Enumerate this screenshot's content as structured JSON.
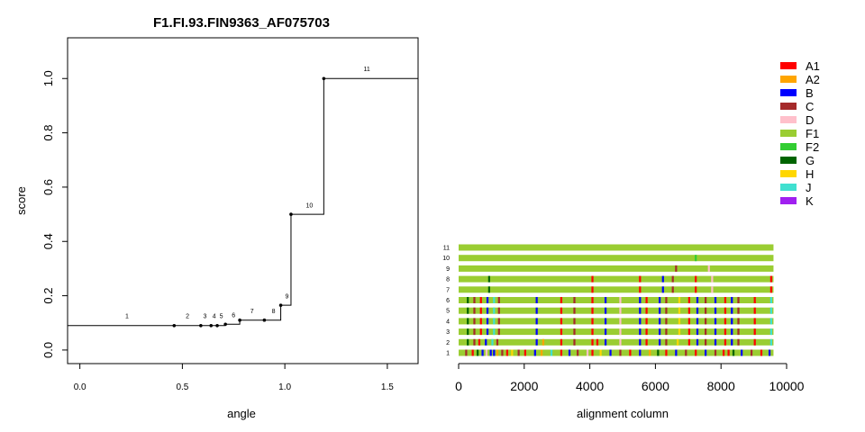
{
  "chart_data": [
    {
      "type": "line",
      "title": "F1.FI.93.FIN9363_AF075703",
      "xlabel": "angle",
      "ylabel": "score",
      "xlim": [
        -0.06,
        1.65
      ],
      "ylim": [
        -0.05,
        1.15
      ],
      "xticks": [
        0.0,
        0.5,
        1.0,
        1.5
      ],
      "xtick_labels": [
        "0.0",
        "0.5",
        "1.0",
        "1.5"
      ],
      "yticks": [
        0.0,
        0.2,
        0.4,
        0.6,
        0.8,
        1.0
      ],
      "ytick_labels": [
        "0.0",
        "0.2",
        "0.4",
        "0.6",
        "0.8",
        "1.0"
      ],
      "step": {
        "x": [
          -0.06,
          0.46,
          0.59,
          0.64,
          0.67,
          0.71,
          0.78,
          0.9,
          0.98,
          1.03,
          1.19,
          1.65
        ],
        "y": [
          0.09,
          0.09,
          0.09,
          0.09,
          0.09,
          0.095,
          0.11,
          0.11,
          0.165,
          0.5,
          1.0,
          1.0
        ]
      },
      "points": [
        {
          "label": "1",
          "x": 0.46,
          "y": 0.09,
          "label_x": 0.23,
          "label_y": 0.117
        },
        {
          "label": "2",
          "x": 0.59,
          "y": 0.09,
          "label_x": 0.525,
          "label_y": 0.117
        },
        {
          "label": "3",
          "x": 0.64,
          "y": 0.09,
          "label_x": 0.61,
          "label_y": 0.117
        },
        {
          "label": "4",
          "x": 0.67,
          "y": 0.09,
          "label_x": 0.655,
          "label_y": 0.117
        },
        {
          "label": "5",
          "x": 0.71,
          "y": 0.095,
          "label_x": 0.69,
          "label_y": 0.117
        },
        {
          "label": "6",
          "x": 0.78,
          "y": 0.11,
          "label_x": 0.75,
          "label_y": 0.12
        },
        {
          "label": "7",
          "x": 0.9,
          "y": 0.11,
          "label_x": 0.84,
          "label_y": 0.135
        },
        {
          "label": "8",
          "x": 0.98,
          "y": 0.165,
          "label_x": 0.945,
          "label_y": 0.135
        },
        {
          "label": "9",
          "x": 1.03,
          "y": 0.5,
          "label_x": 1.01,
          "label_y": 0.19
        },
        {
          "label": "10",
          "x": 1.19,
          "y": 1.0,
          "label_x": 1.12,
          "label_y": 0.525
        },
        {
          "label": "11",
          "x": 1.65,
          "y": 1.0,
          "label_x": 1.4,
          "label_y": 1.027
        }
      ]
    },
    {
      "type": "heatmap",
      "xlabel": "alignment column",
      "xlim": [
        0,
        10000
      ],
      "xticks": [
        0,
        2000,
        4000,
        6000,
        8000,
        10000
      ],
      "xtick_labels": [
        "0",
        "2000",
        "4000",
        "6000",
        "8000",
        "10000"
      ],
      "xmax": 9600,
      "row_labels": [
        "1",
        "2",
        "3",
        "4",
        "5",
        "6",
        "7",
        "8",
        "9",
        "10",
        "11"
      ],
      "base_color": "#9ACD32",
      "legend": [
        {
          "name": "A1",
          "color": "#FF0000"
        },
        {
          "name": "A2",
          "color": "#FFA500"
        },
        {
          "name": "B",
          "color": "#0000FF"
        },
        {
          "name": "C",
          "color": "#A52A2A"
        },
        {
          "name": "D",
          "color": "#FFC0CB"
        },
        {
          "name": "F1",
          "color": "#9ACD32"
        },
        {
          "name": "F2",
          "color": "#32CD32"
        },
        {
          "name": "G",
          "color": "#006400"
        },
        {
          "name": "H",
          "color": "#FFD700"
        },
        {
          "name": "J",
          "color": "#40E0D0"
        },
        {
          "name": "K",
          "color": "#A020F0"
        }
      ],
      "rows": [
        {
          "label": "1",
          "marks": [
            [
              200,
              "#A52A2A"
            ],
            [
              400,
              "#FF0000"
            ],
            [
              550,
              "#006400"
            ],
            [
              700,
              "#0000FF"
            ],
            [
              820,
              "#FFC0CB"
            ],
            [
              950,
              "#0000FF"
            ],
            [
              1050,
              "#0000FF"
            ],
            [
              1150,
              "#FFA500"
            ],
            [
              1300,
              "#A52A2A"
            ],
            [
              1450,
              "#FF0000"
            ],
            [
              1600,
              "#FFD700"
            ],
            [
              1800,
              "#A52A2A"
            ],
            [
              2000,
              "#FF0000"
            ],
            [
              2300,
              "#0000FF"
            ],
            [
              2500,
              "#FFA500"
            ],
            [
              2800,
              "#40E0D0"
            ],
            [
              3100,
              "#FF0000"
            ],
            [
              3350,
              "#0000FF"
            ],
            [
              3600,
              "#A52A2A"
            ],
            [
              3900,
              "#FFC0CB"
            ],
            [
              4050,
              "#FF0000"
            ],
            [
              4300,
              "#FFD700"
            ],
            [
              4600,
              "#0000FF"
            ],
            [
              4900,
              "#A52A2A"
            ],
            [
              5200,
              "#FF0000"
            ],
            [
              5500,
              "#0000FF"
            ],
            [
              5800,
              "#FFA500"
            ],
            [
              6050,
              "#006400"
            ],
            [
              6300,
              "#FF0000"
            ],
            [
              6600,
              "#0000FF"
            ],
            [
              6900,
              "#A52A2A"
            ],
            [
              7200,
              "#FF0000"
            ],
            [
              7500,
              "#0000FF"
            ],
            [
              7800,
              "#A52A2A"
            ],
            [
              8050,
              "#FF0000"
            ],
            [
              8200,
              "#FF0000"
            ],
            [
              8350,
              "#006400"
            ],
            [
              8600,
              "#0000FF"
            ],
            [
              8900,
              "#A52A2A"
            ],
            [
              9200,
              "#FF0000"
            ],
            [
              9450,
              "#0000FF"
            ]
          ]
        },
        {
          "label": "2",
          "marks": [
            [
              250,
              "#006400"
            ],
            [
              450,
              "#A52A2A"
            ],
            [
              600,
              "#FF0000"
            ],
            [
              800,
              "#0000FF"
            ],
            [
              1000,
              "#40E0D0"
            ],
            [
              1150,
              "#A52A2A"
            ],
            [
              2350,
              "#0000FF"
            ],
            [
              2550,
              "#FFA500"
            ],
            [
              3100,
              "#FF0000"
            ],
            [
              3500,
              "#A52A2A"
            ],
            [
              4050,
              "#FF0000"
            ],
            [
              4200,
              "#FF0000"
            ],
            [
              4450,
              "#0000FF"
            ],
            [
              4900,
              "#FFC0CB"
            ],
            [
              5500,
              "#0000FF"
            ],
            [
              5700,
              "#FF0000"
            ],
            [
              6100,
              "#0000FF"
            ],
            [
              6300,
              "#A52A2A"
            ],
            [
              6650,
              "#FFD700"
            ],
            [
              7000,
              "#FF0000"
            ],
            [
              7250,
              "#0000FF"
            ],
            [
              7500,
              "#A52A2A"
            ],
            [
              7800,
              "#0000FF"
            ],
            [
              8100,
              "#FF0000"
            ],
            [
              8300,
              "#0000FF"
            ],
            [
              8500,
              "#A52A2A"
            ],
            [
              9000,
              "#FF0000"
            ],
            [
              9500,
              "#40E0D0"
            ]
          ]
        },
        {
          "label": "3",
          "marks": [
            [
              250,
              "#006400"
            ],
            [
              450,
              "#A52A2A"
            ],
            [
              650,
              "#FF0000"
            ],
            [
              850,
              "#0000FF"
            ],
            [
              1050,
              "#40E0D0"
            ],
            [
              1200,
              "#A52A2A"
            ],
            [
              2350,
              "#0000FF"
            ],
            [
              3100,
              "#FF0000"
            ],
            [
              3500,
              "#A52A2A"
            ],
            [
              4050,
              "#FF0000"
            ],
            [
              4450,
              "#0000FF"
            ],
            [
              4900,
              "#FFC0CB"
            ],
            [
              5500,
              "#0000FF"
            ],
            [
              5700,
              "#FF0000"
            ],
            [
              6100,
              "#0000FF"
            ],
            [
              6300,
              "#A52A2A"
            ],
            [
              6700,
              "#FFD700"
            ],
            [
              7000,
              "#FF0000"
            ],
            [
              7250,
              "#0000FF"
            ],
            [
              7500,
              "#A52A2A"
            ],
            [
              7800,
              "#0000FF"
            ],
            [
              8100,
              "#FF0000"
            ],
            [
              8300,
              "#0000FF"
            ],
            [
              8500,
              "#A52A2A"
            ],
            [
              9000,
              "#FF0000"
            ],
            [
              9500,
              "#40E0D0"
            ]
          ]
        },
        {
          "label": "4",
          "marks": [
            [
              250,
              "#006400"
            ],
            [
              450,
              "#A52A2A"
            ],
            [
              650,
              "#FF0000"
            ],
            [
              850,
              "#0000FF"
            ],
            [
              1050,
              "#40E0D0"
            ],
            [
              1200,
              "#A52A2A"
            ],
            [
              2350,
              "#0000FF"
            ],
            [
              3100,
              "#FF0000"
            ],
            [
              3500,
              "#A52A2A"
            ],
            [
              4050,
              "#FF0000"
            ],
            [
              4450,
              "#0000FF"
            ],
            [
              4900,
              "#FFC0CB"
            ],
            [
              5500,
              "#0000FF"
            ],
            [
              5700,
              "#FF0000"
            ],
            [
              6100,
              "#0000FF"
            ],
            [
              6300,
              "#A52A2A"
            ],
            [
              6700,
              "#FFD700"
            ],
            [
              7000,
              "#FF0000"
            ],
            [
              7250,
              "#0000FF"
            ],
            [
              7500,
              "#A52A2A"
            ],
            [
              7800,
              "#0000FF"
            ],
            [
              8100,
              "#FF0000"
            ],
            [
              8300,
              "#0000FF"
            ],
            [
              8500,
              "#A52A2A"
            ],
            [
              9000,
              "#FF0000"
            ],
            [
              9500,
              "#40E0D0"
            ]
          ]
        },
        {
          "label": "5",
          "marks": [
            [
              250,
              "#006400"
            ],
            [
              450,
              "#A52A2A"
            ],
            [
              650,
              "#FF0000"
            ],
            [
              850,
              "#0000FF"
            ],
            [
              1050,
              "#40E0D0"
            ],
            [
              1200,
              "#A52A2A"
            ],
            [
              2350,
              "#0000FF"
            ],
            [
              3100,
              "#FF0000"
            ],
            [
              3500,
              "#A52A2A"
            ],
            [
              4050,
              "#FF0000"
            ],
            [
              4450,
              "#0000FF"
            ],
            [
              4900,
              "#FFC0CB"
            ],
            [
              5500,
              "#0000FF"
            ],
            [
              5700,
              "#FF0000"
            ],
            [
              6100,
              "#0000FF"
            ],
            [
              6300,
              "#A52A2A"
            ],
            [
              6700,
              "#FFD700"
            ],
            [
              7000,
              "#FF0000"
            ],
            [
              7250,
              "#0000FF"
            ],
            [
              7500,
              "#A52A2A"
            ],
            [
              7800,
              "#0000FF"
            ],
            [
              8100,
              "#FF0000"
            ],
            [
              8300,
              "#0000FF"
            ],
            [
              8500,
              "#A52A2A"
            ],
            [
              9000,
              "#FF0000"
            ],
            [
              9500,
              "#40E0D0"
            ]
          ]
        },
        {
          "label": "6",
          "marks": [
            [
              250,
              "#006400"
            ],
            [
              450,
              "#A52A2A"
            ],
            [
              650,
              "#FF0000"
            ],
            [
              850,
              "#0000FF"
            ],
            [
              1050,
              "#40E0D0"
            ],
            [
              1200,
              "#A52A2A"
            ],
            [
              2350,
              "#0000FF"
            ],
            [
              3100,
              "#FF0000"
            ],
            [
              3500,
              "#A52A2A"
            ],
            [
              4050,
              "#FF0000"
            ],
            [
              4450,
              "#0000FF"
            ],
            [
              4900,
              "#FFC0CB"
            ],
            [
              5500,
              "#0000FF"
            ],
            [
              5700,
              "#FF0000"
            ],
            [
              6100,
              "#0000FF"
            ],
            [
              6300,
              "#A52A2A"
            ],
            [
              6700,
              "#FFD700"
            ],
            [
              7000,
              "#FF0000"
            ],
            [
              7250,
              "#0000FF"
            ],
            [
              7500,
              "#A52A2A"
            ],
            [
              7800,
              "#0000FF"
            ],
            [
              8100,
              "#FF0000"
            ],
            [
              8300,
              "#0000FF"
            ],
            [
              8500,
              "#A52A2A"
            ],
            [
              9000,
              "#FF0000"
            ],
            [
              9500,
              "#40E0D0"
            ]
          ]
        },
        {
          "label": "7",
          "marks": [
            [
              900,
              "#006400"
            ],
            [
              4050,
              "#FF0000"
            ],
            [
              5500,
              "#FF0000"
            ],
            [
              6200,
              "#0000FF"
            ],
            [
              6500,
              "#A52A2A"
            ],
            [
              7200,
              "#FF0000"
            ],
            [
              7700,
              "#FFC0CB"
            ],
            [
              9500,
              "#FF0000"
            ]
          ]
        },
        {
          "label": "8",
          "marks": [
            [
              900,
              "#006400"
            ],
            [
              4050,
              "#FF0000"
            ],
            [
              5500,
              "#FF0000"
            ],
            [
              6200,
              "#0000FF"
            ],
            [
              6500,
              "#A52A2A"
            ],
            [
              7200,
              "#FF0000"
            ],
            [
              7700,
              "#FFC0CB"
            ],
            [
              9500,
              "#FF0000"
            ]
          ]
        },
        {
          "label": "9",
          "marks": [
            [
              6600,
              "#A52A2A"
            ],
            [
              7600,
              "#FFC0CB"
            ]
          ]
        },
        {
          "label": "10",
          "marks": [
            [
              7200,
              "#32CD32"
            ]
          ]
        },
        {
          "label": "11",
          "marks": []
        }
      ]
    }
  ]
}
